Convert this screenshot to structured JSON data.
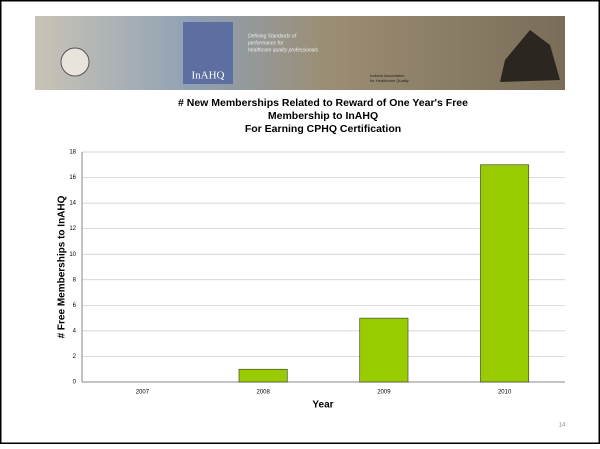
{
  "banner": {
    "logo": "InAHQ",
    "tagline": [
      "Defining Standards of",
      "performance for",
      "healthcare quality professionals"
    ],
    "org": [
      "Indiana Association",
      "for Healthcare Quality"
    ]
  },
  "chart_data": {
    "type": "bar",
    "title": [
      "# New Memberships Related to Reward of One Year's Free",
      "Membership to InAHQ",
      "For Earning CPHQ Certification"
    ],
    "x_label": "Year",
    "y_label": "# Free Memberships to InAHQ",
    "categories": [
      "2007",
      "2008",
      "2009",
      "2010"
    ],
    "values": [
      0,
      1,
      5,
      17
    ],
    "color": "#99cc00",
    "ylim": [
      0,
      18
    ],
    "yticks": [
      0,
      2,
      4,
      6,
      8,
      10,
      12,
      14,
      16,
      18
    ],
    "grid": true
  },
  "page_number": "14"
}
